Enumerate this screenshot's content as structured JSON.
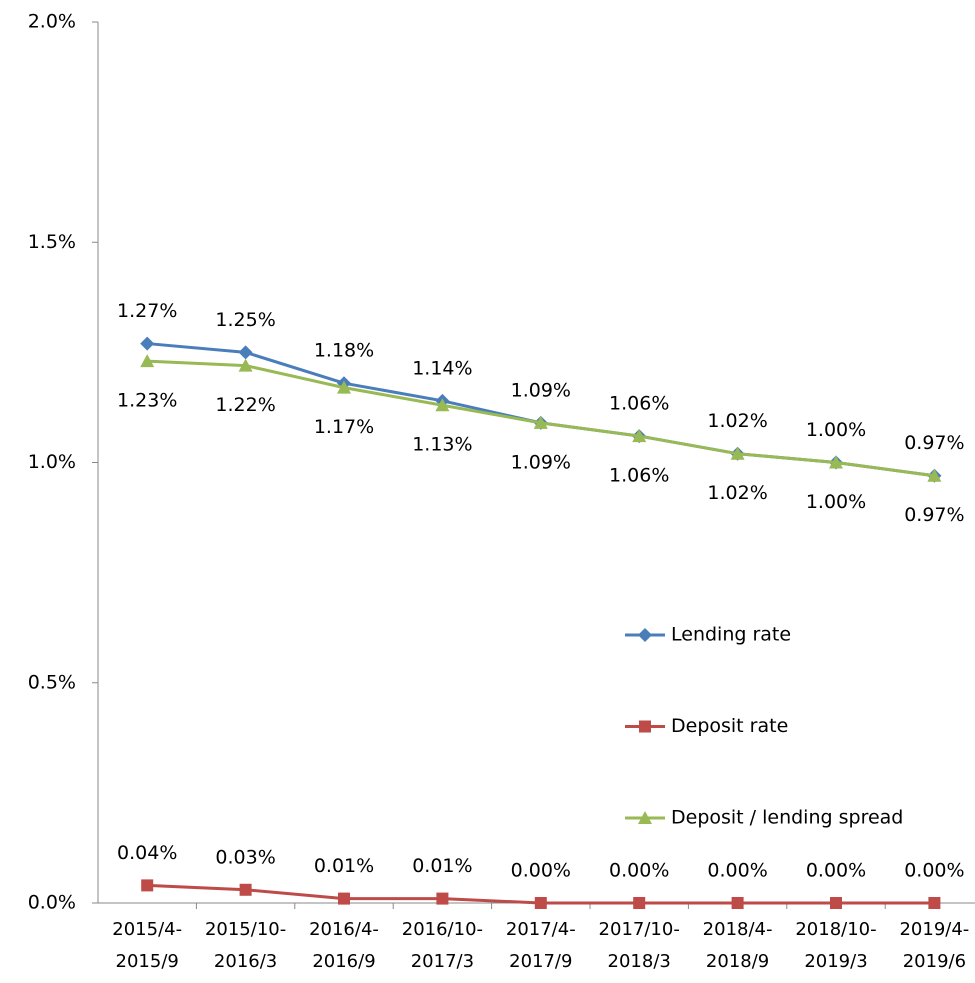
{
  "chart_data": {
    "type": "line",
    "categories": [
      "2015/4-\n2015/9",
      "2015/10-\n2016/3",
      "2016/4-\n2016/9",
      "2016/10-\n2017/3",
      "2017/4-\n2017/9",
      "2017/10-\n2018/3",
      "2018/4-\n2018/9",
      "2018/10-\n2019/3",
      "2019/4-\n2019/6"
    ],
    "series": [
      {
        "name": "Lending rate",
        "color": "#4a7ebb",
        "marker": "diamond",
        "label_position": "above",
        "values": [
          1.27,
          1.25,
          1.18,
          1.14,
          1.09,
          1.06,
          1.02,
          1.0,
          0.97
        ],
        "value_labels": [
          "1.27%",
          "1.25%",
          "1.18%",
          "1.14%",
          "1.09%",
          "1.06%",
          "1.02%",
          "1.00%",
          "0.97%"
        ]
      },
      {
        "name": "Deposit rate",
        "color": "#be4b48",
        "marker": "square",
        "label_position": "above",
        "values": [
          0.04,
          0.03,
          0.01,
          0.01,
          0.0,
          0.0,
          0.0,
          0.0,
          0.0
        ],
        "value_labels": [
          "0.04%",
          "0.03%",
          "0.01%",
          "0.01%",
          "0.00%",
          "0.00%",
          "0.00%",
          "0.00%",
          "0.00%"
        ]
      },
      {
        "name": "Deposit / lending spread",
        "color": "#98b954",
        "marker": "triangle",
        "label_position": "below",
        "values": [
          1.23,
          1.22,
          1.17,
          1.13,
          1.09,
          1.06,
          1.02,
          1.0,
          0.97
        ],
        "value_labels": [
          "1.23%",
          "1.22%",
          "1.17%",
          "1.13%",
          "1.09%",
          "1.06%",
          "1.02%",
          "1.00%",
          "0.97%"
        ]
      }
    ],
    "ylim": [
      0,
      2
    ],
    "yticks": [
      {
        "value": 0,
        "label": "0.0%"
      },
      {
        "value": 0.5,
        "label": "0.5%"
      },
      {
        "value": 1,
        "label": "1.0%"
      },
      {
        "value": 1.5,
        "label": "1.5%"
      },
      {
        "value": 2,
        "label": "2.0%"
      }
    ],
    "grid": false,
    "legend": "right"
  }
}
